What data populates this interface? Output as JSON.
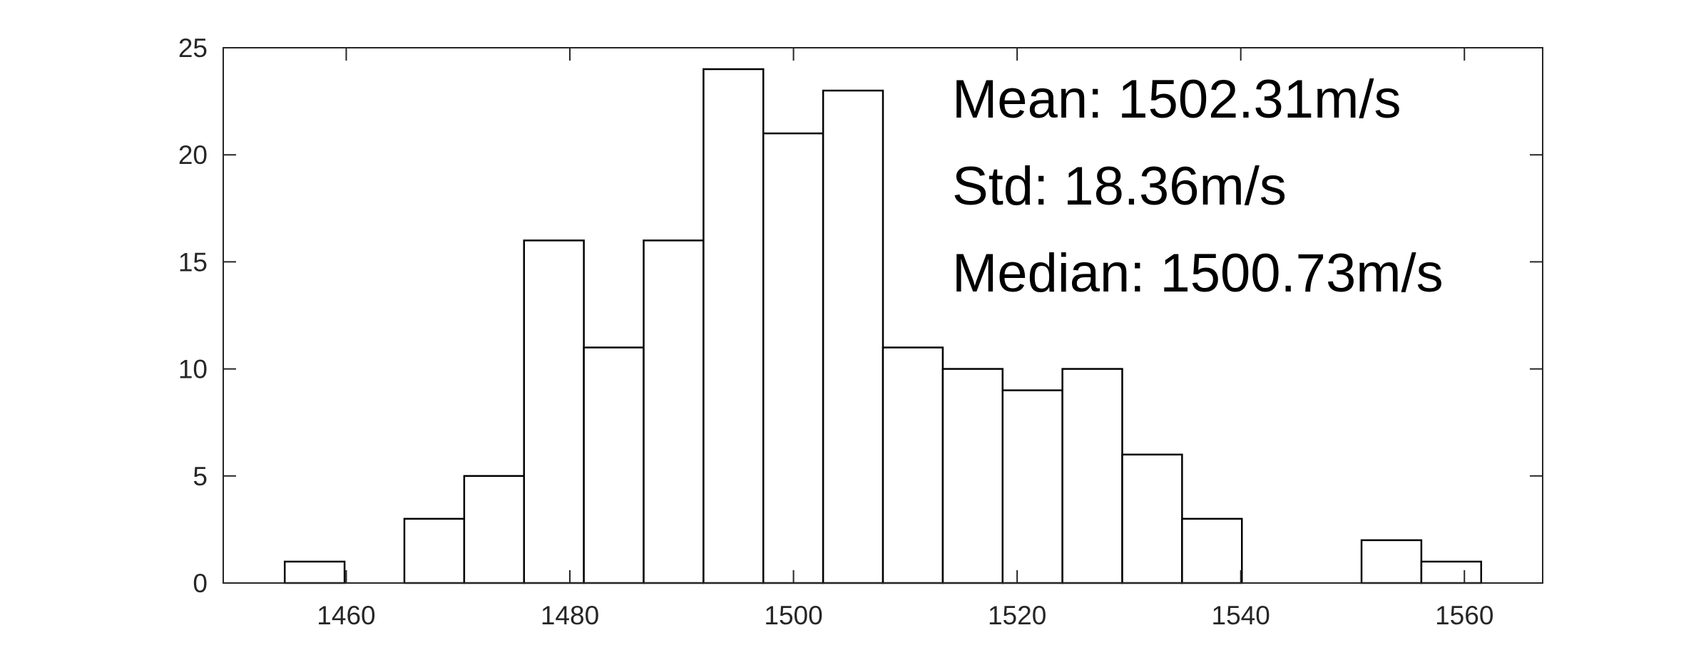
{
  "chart_data": {
    "type": "histogram",
    "bins": [
      1454.5,
      1459.85,
      1465.2,
      1470.55,
      1475.9,
      1481.25,
      1486.6,
      1491.95,
      1497.3,
      1502.65,
      1508.0,
      1513.35,
      1518.7,
      1524.05,
      1529.4,
      1534.75,
      1540.1,
      1545.45,
      1550.8,
      1556.15,
      1561.5
    ],
    "values": [
      1,
      0,
      3,
      5,
      16,
      11,
      16,
      24,
      21,
      23,
      11,
      10,
      9,
      10,
      6,
      3,
      0,
      0,
      2,
      1
    ],
    "color": "#ffffff",
    "edgecolor": "#000000",
    "xlim": [
      1449,
      1567
    ],
    "xticks": [
      1460,
      1480,
      1500,
      1520,
      1540,
      1560
    ],
    "ylim": [
      0,
      25
    ],
    "yticks": [
      0,
      5,
      10,
      15,
      20,
      25
    ],
    "grid": false,
    "annotations": [
      "Mean: 1502.31m/s",
      "Std: 18.36m/s",
      "Median: 1500.73m/s"
    ]
  }
}
